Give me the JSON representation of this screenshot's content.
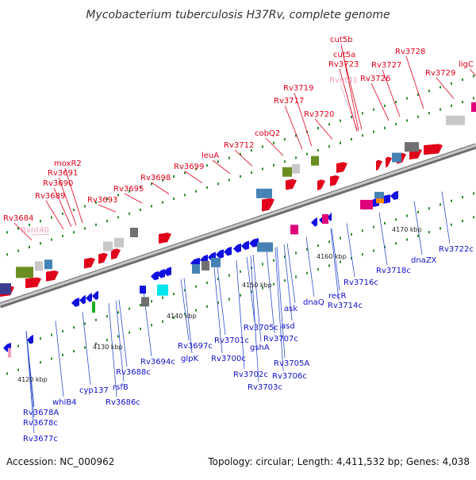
{
  "title": "Mycobacterium tuberculosis H37Rv, complete genome",
  "footer": {
    "accession": "Accession: NC_000962",
    "summary": "Topology: circular; Length: 4,411,532 bp; Genes: 4,038"
  },
  "colors": {
    "forward_label": "#e0001a",
    "reverse_label": "#1010c8",
    "rna_label": "#f0a0c0",
    "backbone": "#9a9a9a",
    "tick": "#2e8b2e",
    "leader": "#3050d0"
  },
  "kbp_marks": [
    "4120 kbp",
    "4130 kbp",
    "4140 kbp",
    "4150 kbp",
    "4160 kbp",
    "4170 kbp"
  ],
  "forward_labels": [
    "Rv3684",
    "Rvnt40",
    "Rv3689",
    "Rv3690",
    "Rv3691",
    "moxR2",
    "Rv3693",
    "Rv3695",
    "Rv3698",
    "Rv3699",
    "leuA",
    "Rv3712",
    "cobQ2",
    "Rv3717",
    "Rv3719",
    "Rv3720",
    "Rvnt41",
    "Rv3723",
    "cut5a",
    "cut5b",
    "Rv3726",
    "Rv3727",
    "Rv3728",
    "Rv3729",
    "ligC"
  ],
  "reverse_labels": [
    "whiB4",
    "Rv3678A",
    "Rv3678c",
    "Rv3677c",
    "cyp137",
    "rsfB",
    "Rv3686c",
    "Rv3688c",
    "Rv3694c",
    "Rv3697c",
    "glpK",
    "Rv3700c",
    "Rv3701c",
    "Rv3702c",
    "Rv3703c",
    "gshA",
    "Rv3705c",
    "Rv3705A",
    "Rv3706c",
    "Rv3707c",
    "asd",
    "ask",
    "dnaQ",
    "recR",
    "Rv3714c",
    "Rv3716c",
    "Rv3718c",
    "dnaZX",
    "Rv3722c"
  ]
}
